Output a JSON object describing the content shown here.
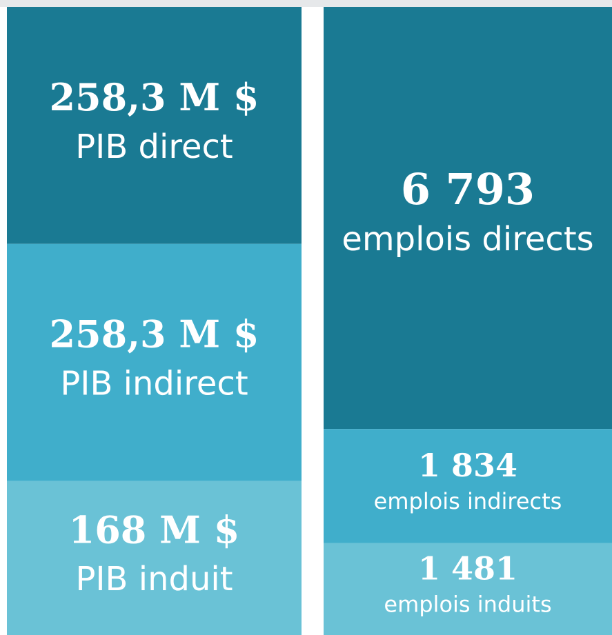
{
  "chart_data": [
    {
      "type": "stacked-column",
      "categories": [
        "PIB direct",
        "PIB indirect",
        "PIB induit"
      ],
      "values": [
        258.3,
        258.3,
        168
      ],
      "value_labels": [
        "258,3 M $",
        "258,3 M $",
        "168 M $"
      ],
      "colors": [
        "#1a7a93",
        "#40aecb",
        "#6ac2d6"
      ]
    },
    {
      "type": "stacked-column",
      "categories": [
        "emplois directs",
        "emplois indirects",
        "emplois induits"
      ],
      "values": [
        6793,
        1834,
        1481
      ],
      "value_labels": [
        "6 793",
        "1 834",
        "1 481"
      ],
      "colors": [
        "#1a7a93",
        "#40aecb",
        "#6ac2d6"
      ]
    }
  ]
}
